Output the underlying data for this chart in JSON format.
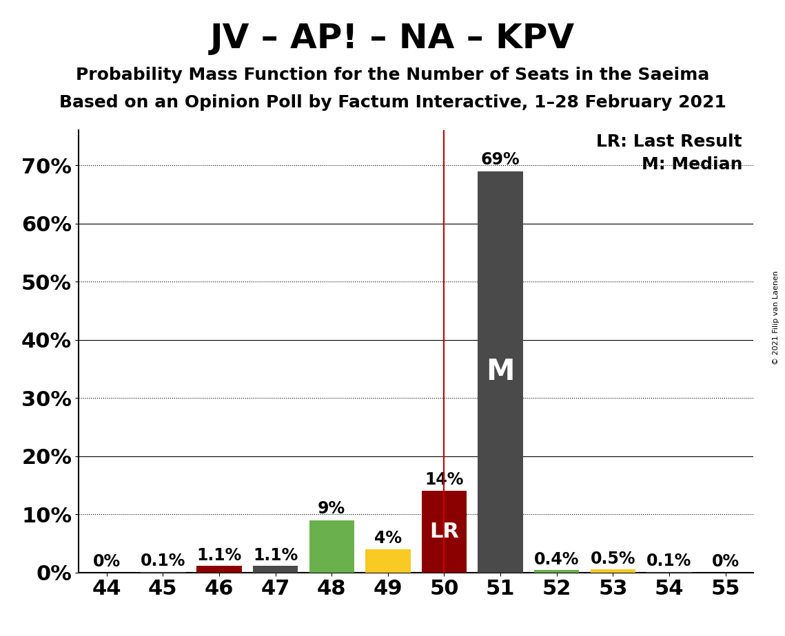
{
  "title": "JV – AP! – NA – KPV",
  "subtitle1": "Probability Mass Function for the Number of Seats in the Saeima",
  "subtitle2": "Based on an Opinion Poll by Factum Interactive, 1–28 February 2021",
  "copyright": "© 2021 Filip van Laenen",
  "seats": [
    44,
    45,
    46,
    47,
    48,
    49,
    50,
    51,
    52,
    53,
    54,
    55
  ],
  "probabilities": [
    0.0,
    0.1,
    1.1,
    1.1,
    9.0,
    4.0,
    14.0,
    69.0,
    0.4,
    0.5,
    0.1,
    0.0
  ],
  "bar_colors": [
    "#4a4a4a",
    "#4a4a4a",
    "#8b0000",
    "#4a4a4a",
    "#6ab04c",
    "#f9ca24",
    "#8b0000",
    "#4a4a4a",
    "#6ab04c",
    "#f9ca24",
    "#4a4a4a",
    "#4a4a4a"
  ],
  "last_result_seat": 50,
  "median_seat": 51,
  "last_result_color": "#cc0000",
  "ylabel_ticks": [
    0,
    10,
    20,
    30,
    40,
    50,
    60,
    70
  ],
  "solid_gridlines": [
    0,
    20,
    40,
    60
  ],
  "dotted_gridlines": [
    10,
    30,
    50,
    70
  ],
  "ylim": [
    0,
    76
  ],
  "background_color": "#ffffff",
  "title_fontsize": 36,
  "subtitle_fontsize": 18,
  "bar_label_fontsize": 17,
  "axis_fontsize": 22,
  "legend_fontsize": 18,
  "bar_labels": [
    "0%",
    "0.1%",
    "1.1%",
    "1.1%",
    "9%",
    "4%",
    "14%",
    "69%",
    "0.4%",
    "0.5%",
    "0.1%",
    "0%"
  ]
}
